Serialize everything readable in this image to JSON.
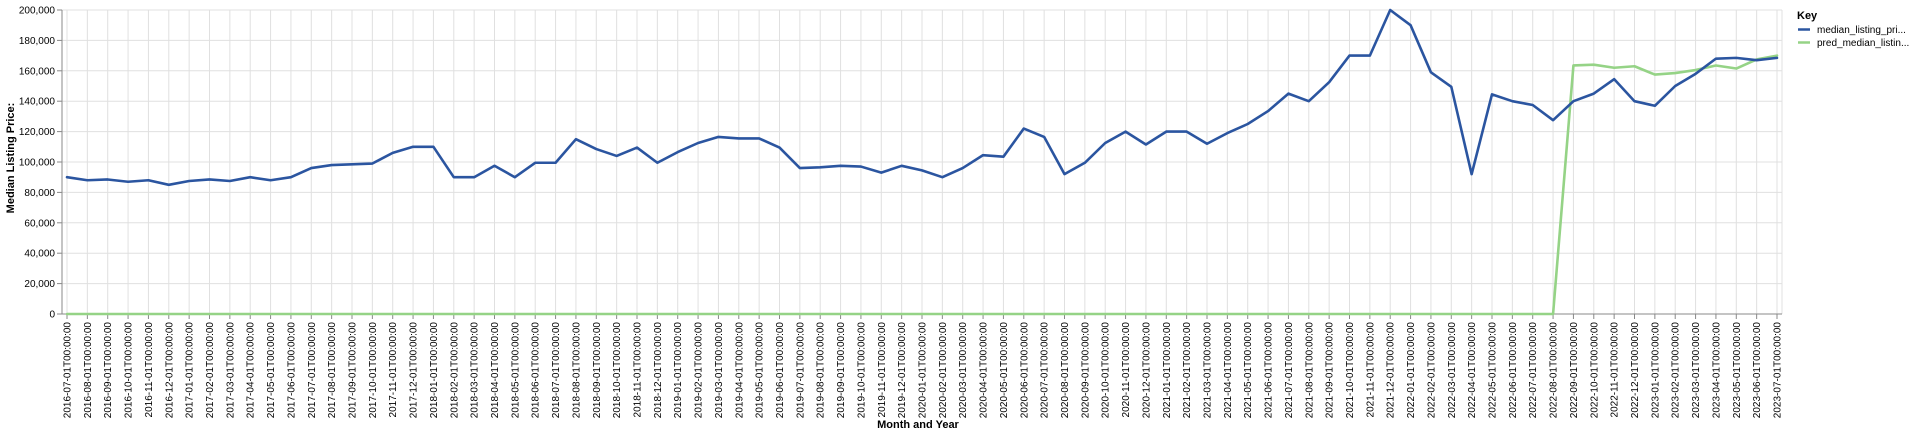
{
  "chart_data": {
    "type": "line",
    "xlabel": "Month and Year",
    "ylabel": "Median Listing Price:",
    "ylim": [
      0,
      200000
    ],
    "yticks": [
      "0",
      "20,000",
      "40,000",
      "60,000",
      "80,000",
      "100,000",
      "120,000",
      "140,000",
      "160,000",
      "180,000",
      "200,000"
    ],
    "grid": true,
    "legend": {
      "title": "Key",
      "position": "top-right"
    },
    "x": [
      "2016-07-01T00:00:00",
      "2016-08-01T00:00:00",
      "2016-09-01T00:00:00",
      "2016-10-01T00:00:00",
      "2016-11-01T00:00:00",
      "2016-12-01T00:00:00",
      "2017-01-01T00:00:00",
      "2017-02-01T00:00:00",
      "2017-03-01T00:00:00",
      "2017-04-01T00:00:00",
      "2017-05-01T00:00:00",
      "2017-06-01T00:00:00",
      "2017-07-01T00:00:00",
      "2017-08-01T00:00:00",
      "2017-09-01T00:00:00",
      "2017-10-01T00:00:00",
      "2017-11-01T00:00:00",
      "2017-12-01T00:00:00",
      "2018-01-01T00:00:00",
      "2018-02-01T00:00:00",
      "2018-03-01T00:00:00",
      "2018-04-01T00:00:00",
      "2018-05-01T00:00:00",
      "2018-06-01T00:00:00",
      "2018-07-01T00:00:00",
      "2018-08-01T00:00:00",
      "2018-09-01T00:00:00",
      "2018-10-01T00:00:00",
      "2018-11-01T00:00:00",
      "2018-12-01T00:00:00",
      "2019-01-01T00:00:00",
      "2019-02-01T00:00:00",
      "2019-03-01T00:00:00",
      "2019-04-01T00:00:00",
      "2019-05-01T00:00:00",
      "2019-06-01T00:00:00",
      "2019-07-01T00:00:00",
      "2019-08-01T00:00:00",
      "2019-09-01T00:00:00",
      "2019-10-01T00:00:00",
      "2019-11-01T00:00:00",
      "2019-12-01T00:00:00",
      "2020-01-01T00:00:00",
      "2020-02-01T00:00:00",
      "2020-03-01T00:00:00",
      "2020-04-01T00:00:00",
      "2020-05-01T00:00:00",
      "2020-06-01T00:00:00",
      "2020-07-01T00:00:00",
      "2020-08-01T00:00:00",
      "2020-09-01T00:00:00",
      "2020-10-01T00:00:00",
      "2020-11-01T00:00:00",
      "2020-12-01T00:00:00",
      "2021-01-01T00:00:00",
      "2021-02-01T00:00:00",
      "2021-03-01T00:00:00",
      "2021-04-01T00:00:00",
      "2021-05-01T00:00:00",
      "2021-06-01T00:00:00",
      "2021-07-01T00:00:00",
      "2021-08-01T00:00:00",
      "2021-09-01T00:00:00",
      "2021-10-01T00:00:00",
      "2021-11-01T00:00:00",
      "2021-12-01T00:00:00",
      "2022-01-01T00:00:00",
      "2022-02-01T00:00:00",
      "2022-03-01T00:00:00",
      "2022-04-01T00:00:00",
      "2022-05-01T00:00:00",
      "2022-06-01T00:00:00",
      "2022-07-01T00:00:00",
      "2022-08-01T00:00:00",
      "2022-09-01T00:00:00",
      "2022-10-01T00:00:00",
      "2022-11-01T00:00:00",
      "2022-12-01T00:00:00",
      "2023-01-01T00:00:00",
      "2023-02-01T00:00:00",
      "2023-03-01T00:00:00",
      "2023-04-01T00:00:00",
      "2023-05-01T00:00:00",
      "2023-06-01T00:00:00",
      "2023-07-01T00:00:00"
    ],
    "series": [
      {
        "name": "median_listing_pri...",
        "color": "#2b55a0",
        "values": [
          90000,
          88000,
          88500,
          87000,
          88000,
          85000,
          87500,
          88500,
          87500,
          90000,
          88000,
          90000,
          96000,
          98000,
          98500,
          99000,
          106000,
          110000,
          110000,
          90000,
          90000,
          97500,
          90000,
          99500,
          99500,
          115000,
          108500,
          104000,
          109500,
          99500,
          106500,
          112500,
          116500,
          115500,
          115500,
          109500,
          96000,
          96500,
          97500,
          97000,
          93000,
          97500,
          94500,
          90000,
          96000,
          104500,
          103500,
          122000,
          116500,
          92000,
          99500,
          112500,
          120000,
          111500,
          120000,
          120000,
          112000,
          119000,
          125000,
          133500,
          145000,
          140000,
          152500,
          170000,
          170000,
          200000,
          190000,
          159000,
          149500,
          92000,
          144500,
          140000,
          137500,
          127500,
          140000,
          145000,
          154500,
          140000,
          137000,
          150000,
          158000,
          168000,
          168500,
          167000,
          168500
        ]
      },
      {
        "name": "pred_median_listin...",
        "color": "#95d386",
        "values": [
          0,
          0,
          0,
          0,
          0,
          0,
          0,
          0,
          0,
          0,
          0,
          0,
          0,
          0,
          0,
          0,
          0,
          0,
          0,
          0,
          0,
          0,
          0,
          0,
          0,
          0,
          0,
          0,
          0,
          0,
          0,
          0,
          0,
          0,
          0,
          0,
          0,
          0,
          0,
          0,
          0,
          0,
          0,
          0,
          0,
          0,
          0,
          0,
          0,
          0,
          0,
          0,
          0,
          0,
          0,
          0,
          0,
          0,
          0,
          0,
          0,
          0,
          0,
          0,
          0,
          0,
          0,
          0,
          0,
          0,
          0,
          0,
          0,
          0,
          163500,
          164000,
          162000,
          163000,
          157500,
          158500,
          160500,
          163500,
          161500,
          167500,
          170000
        ]
      }
    ]
  }
}
